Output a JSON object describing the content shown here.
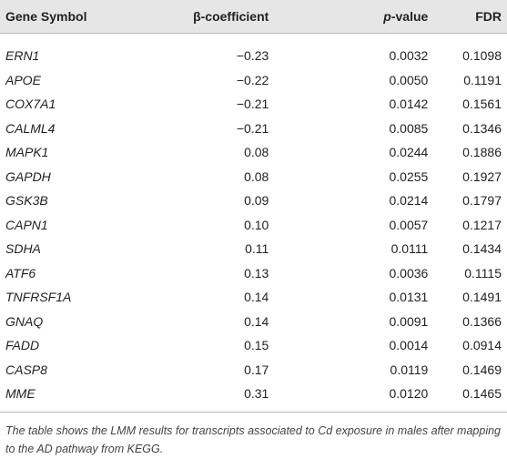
{
  "table": {
    "header": [
      "Gene Symbol",
      "β-coefficient",
      "p-value",
      "FDR"
    ],
    "rows": [
      [
        "ERN1",
        "−0.23",
        "0.0032",
        "0.1098"
      ],
      [
        "APOE",
        "−0.22",
        "0.0050",
        "0.1191"
      ],
      [
        "COX7A1",
        "−0.21",
        "0.0142",
        "0.1561"
      ],
      [
        "CALML4",
        "−0.21",
        "0.0085",
        "0.1346"
      ],
      [
        "MAPK1",
        "0.08",
        "0.0244",
        "0.1886"
      ],
      [
        "GAPDH",
        "0.08",
        "0.0255",
        "0.1927"
      ],
      [
        "GSK3B",
        "0.09",
        "0.0214",
        "0.1797"
      ],
      [
        "CAPN1",
        "0.10",
        "0.0057",
        "0.1217"
      ],
      [
        "SDHA",
        "0.11",
        "0.0111",
        "0.1434"
      ],
      [
        "ATF6",
        "0.13",
        "0.0036",
        "0.1115"
      ],
      [
        "TNFRSF1A",
        "0.14",
        "0.0131",
        "0.1491"
      ],
      [
        "GNAQ",
        "0.14",
        "0.0091",
        "0.1366"
      ],
      [
        "FADD",
        "0.15",
        "0.0014",
        "0.0914"
      ],
      [
        "CASP8",
        "0.17",
        "0.0119",
        "0.1469"
      ],
      [
        "MME",
        "0.31",
        "0.0120",
        "0.1465"
      ]
    ],
    "footnote": "The table shows the LMM results for transcripts associated to Cd exposure in males after mapping to the AD pathway from KEGG."
  }
}
